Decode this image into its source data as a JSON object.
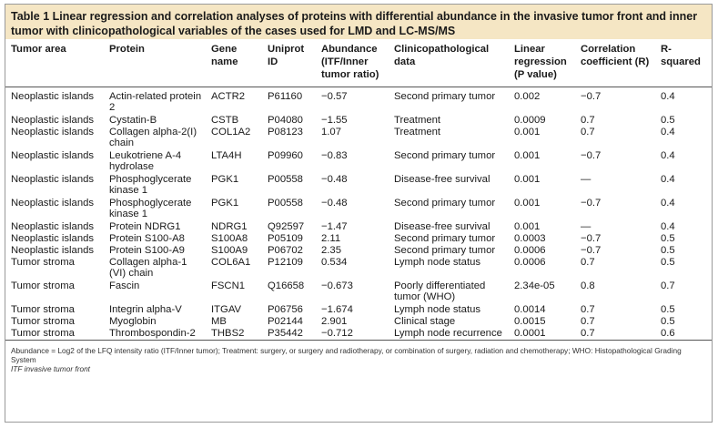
{
  "caption": "Table 1 Linear regression and correlation analyses of proteins with differential abundance in the invasive tumor front and inner tumor with clinicopathological variables of the cases used for LMD and LC-MS/MS",
  "headers": {
    "area": "Tumor area",
    "protein": "Protein",
    "gene": "Gene name",
    "uniprot": "Uniprot ID",
    "abundance": "Abundance (ITF/Inner tumor ratio)",
    "clinico": "Clinicopathological data",
    "linreg": "Linear regression (P value)",
    "corr": "Correlation coefficient (R)",
    "rsq": "R-squared"
  },
  "rows": [
    {
      "area": "Neoplastic islands",
      "protein": "Actin-related protein 2",
      "gene": "ACTR2",
      "uniprot": "P61160",
      "abundance": "−0.57",
      "clinico": "Second primary tumor",
      "linreg": "0.002",
      "corr": "−0.7",
      "rsq": "0.4"
    },
    {
      "area": "Neoplastic islands",
      "protein": "Cystatin-B",
      "gene": "CSTB",
      "uniprot": "P04080",
      "abundance": "−1.55",
      "clinico": "Treatment",
      "linreg": "0.0009",
      "corr": "0.7",
      "rsq": "0.5"
    },
    {
      "area": "Neoplastic islands",
      "protein": "Collagen alpha-2(I) chain",
      "gene": "COL1A2",
      "uniprot": "P08123",
      "abundance": "1.07",
      "clinico": "Treatment",
      "linreg": "0.001",
      "corr": "0.7",
      "rsq": "0.4"
    },
    {
      "area": "Neoplastic islands",
      "protein": "Leukotriene A-4 hydrolase",
      "gene": "LTA4H",
      "uniprot": "P09960",
      "abundance": "−0.83",
      "clinico": "Second primary tumor",
      "linreg": "0.001",
      "corr": "−0.7",
      "rsq": "0.4"
    },
    {
      "area": "Neoplastic islands",
      "protein": "Phosphoglycerate kinase 1",
      "gene": "PGK1",
      "uniprot": "P00558",
      "abundance": "−0.48",
      "clinico": "Disease-free survival",
      "linreg": "0.001",
      "corr": "—",
      "rsq": "0.4"
    },
    {
      "area": "Neoplastic islands",
      "protein": "Phosphoglycerate kinase 1",
      "gene": "PGK1",
      "uniprot": "P00558",
      "abundance": "−0.48",
      "clinico": "Second primary tumor",
      "linreg": "0.001",
      "corr": "−0.7",
      "rsq": "0.4"
    },
    {
      "area": "Neoplastic islands",
      "protein": "Protein NDRG1",
      "gene": "NDRG1",
      "uniprot": "Q92597",
      "abundance": "−1.47",
      "clinico": "Disease-free survival",
      "linreg": "0.001",
      "corr": "—",
      "rsq": "0.4"
    },
    {
      "area": "Neoplastic islands",
      "protein": "Protein S100-A8",
      "gene": "S100A8",
      "uniprot": "P05109",
      "abundance": "2.11",
      "clinico": "Second primary tumor",
      "linreg": "0.0003",
      "corr": "−0.7",
      "rsq": "0.5"
    },
    {
      "area": "Neoplastic islands",
      "protein": "Protein S100-A9",
      "gene": "S100A9",
      "uniprot": "P06702",
      "abundance": "2.35",
      "clinico": "Second primary tumor",
      "linreg": "0.0006",
      "corr": "−0.7",
      "rsq": "0.5"
    },
    {
      "area": "Tumor stroma",
      "protein": "Collagen alpha-1 (VI) chain",
      "gene": "COL6A1",
      "uniprot": "P12109",
      "abundance": "0.534",
      "clinico": "Lymph node status",
      "linreg": "0.0006",
      "corr": "0.7",
      "rsq": "0.5"
    },
    {
      "area": "Tumor stroma",
      "protein": "Fascin",
      "gene": "FSCN1",
      "uniprot": "Q16658",
      "abundance": "−0.673",
      "clinico": "Poorly differentiated tumor (WHO)",
      "linreg": "2.34e-05",
      "corr": "0.8",
      "rsq": "0.7"
    },
    {
      "area": "Tumor stroma",
      "protein": "Integrin alpha-V",
      "gene": "ITGAV",
      "uniprot": "P06756",
      "abundance": "−1.674",
      "clinico": "Lymph node status",
      "linreg": "0.0014",
      "corr": "0.7",
      "rsq": "0.5"
    },
    {
      "area": "Tumor stroma",
      "protein": "Myoglobin",
      "gene": "MB",
      "uniprot": "P02144",
      "abundance": "2.901",
      "clinico": "Clinical stage",
      "linreg": "0.0015",
      "corr": "0.7",
      "rsq": "0.5"
    },
    {
      "area": "Tumor stroma",
      "protein": "Thrombospondin-2",
      "gene": "THBS2",
      "uniprot": "P35442",
      "abundance": "−0.712",
      "clinico": "Lymph node recurrence",
      "linreg": "0.0001",
      "corr": "0.7",
      "rsq": "0.6"
    }
  ],
  "footnote_1": "Abundance = Log2 of the LFQ intensity ratio (ITF/Inner tumor); Treatment: surgery, or surgery and radiotherapy, or combination of surgery, radiation and chemotherapy; WHO: Histopathological Grading System",
  "footnote_2": "ITF invasive tumor front"
}
